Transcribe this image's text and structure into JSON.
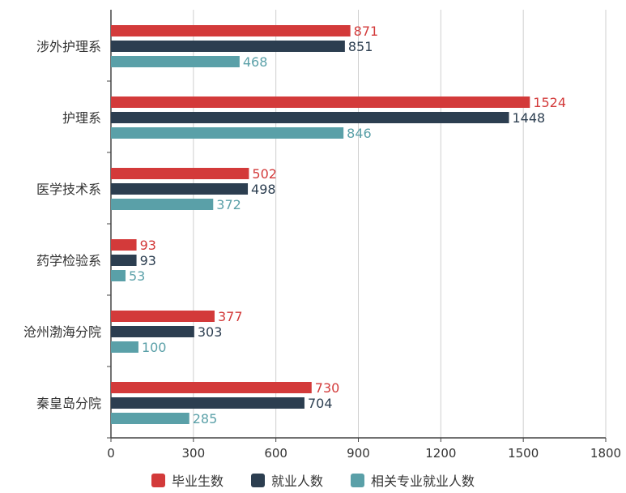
{
  "chart_data": {
    "type": "bar",
    "orientation": "horizontal",
    "categories": [
      "涉外护理系",
      "护理系",
      "医学技术系",
      "药学检验系",
      "沧州渤海分院",
      "秦皇岛分院"
    ],
    "series": [
      {
        "name": "毕业生数",
        "color": "#d33a3a",
        "values": [
          871,
          1524,
          502,
          93,
          377,
          730
        ]
      },
      {
        "name": "就业人数",
        "color": "#2c3e50",
        "values": [
          851,
          1448,
          498,
          93,
          303,
          704
        ]
      },
      {
        "name": "相关专业就业人数",
        "color": "#5aa0a8",
        "values": [
          468,
          846,
          372,
          53,
          100,
          285
        ]
      }
    ],
    "xlim": [
      0,
      1800
    ],
    "xticks": [
      "0",
      "300",
      "600",
      "900",
      "1200",
      "1500",
      "1800"
    ],
    "grid": true,
    "legend_position": "bottom"
  }
}
